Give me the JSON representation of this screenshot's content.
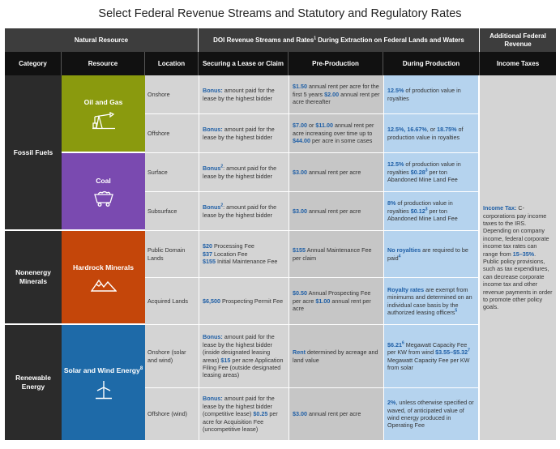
{
  "title": "Select Federal Revenue Streams and Statutory and Regulatory Rates",
  "header_top": {
    "natural_resource": "Natural Resource",
    "doi_streams_pre": "DOI Revenue Streams and Rates",
    "doi_streams_sup": "1",
    "doi_streams_post": " During Extraction on Federal Lands and Waters",
    "additional": "Additional Federal Revenue"
  },
  "header_cols": {
    "category": "Category",
    "resource": "Resource",
    "location": "Location",
    "securing": "Securing a Lease or Claim",
    "preproduction": "Pre-Production",
    "during": "During Production",
    "income_taxes": "Income Taxes"
  },
  "categories": {
    "fossil": "Fossil Fuels",
    "nonenergy": "Nonenergy Minerals",
    "renewable": "Renewable Energy"
  },
  "resources": {
    "oil_gas": "Oil and Gas",
    "coal": "Coal",
    "hardrock": "Hardrock Minerals",
    "solar_wind": "Solar and Wind Energy",
    "solar_wind_sup": "8"
  },
  "colors": {
    "oil_gas": "#8a9a0e",
    "coal": "#7a4ab0",
    "hardrock": "#c4460a",
    "solar_wind": "#1e6aa8",
    "header_dark": "#111111",
    "header_top": "#3d3d3d",
    "accent_text": "#1f5fa6"
  },
  "rows": {
    "onshore_og": {
      "location": "Onshore",
      "sec_b": "Bonus:",
      "sec_t": " amount paid for the lease by the highest bidder",
      "pre_b1": "$1.50",
      "pre_t1": " annual rent per acre for the first 5 years ",
      "pre_b2": "$2.00",
      "pre_t2": " annual rent per acre thereafter",
      "dur_b": "12.5%",
      "dur_t": " of production value in royalties"
    },
    "offshore_og": {
      "location": "Offshore",
      "sec_b": "Bonus:",
      "sec_t": " amount paid for the lease by the highest bidder",
      "pre_b1": "$7.00",
      "pre_t1": " or ",
      "pre_b2": "$11.00",
      "pre_t2": " annual rent per acre increasing over time up to ",
      "pre_b3": "$44.00",
      "pre_t3": " per acre in some cases",
      "dur_b1": "12.5%, 16.67%",
      "dur_t1": ", or ",
      "dur_b2": "18.75%",
      "dur_t2": " of production value in royalties"
    },
    "surface": {
      "location": "Surface",
      "sec_b": "Bonus",
      "sec_sup": "2",
      "sec_t": ": amount paid for the lease by the highest bidder",
      "pre_b": "$3.00",
      "pre_t": " annual rent per acre",
      "dur_b1": "12.5%",
      "dur_t1": " of production value in royalties ",
      "dur_b2": "$0.28",
      "dur_sup": "3",
      "dur_t2": " per ton Abandoned Mine Land Fee"
    },
    "subsurface": {
      "location": "Subsurface",
      "sec_b": "Bonus",
      "sec_sup": "2",
      "sec_t": ": amount paid for the lease by the highest bidder",
      "pre_b": "$3.00",
      "pre_t": " annual rent per acre",
      "dur_b1": "8%",
      "dur_t1": " of production value in royalties ",
      "dur_b2": "$0.12",
      "dur_sup": "3",
      "dur_t2": " per ton Abandoned Mine Land Fee"
    },
    "public_domain": {
      "location": "Public Domain Lands",
      "sec_b1": "$20",
      "sec_t1": " Processing Fee",
      "sec_b2": "$37",
      "sec_t2": " Location Fee",
      "sec_b3": "$155",
      "sec_t3": " Initial Maintenance Fee",
      "pre_b": "$155",
      "pre_t": " Annual Maintenance Fee per claim",
      "dur_b": "No royalties",
      "dur_t": " are required to be paid",
      "dur_sup": "4"
    },
    "acquired": {
      "location": "Acquired Lands",
      "sec_b": "$6,500",
      "sec_t": " Prospecting Permit Fee",
      "pre_b1": "$0.50",
      "pre_t1": " Annual Prospecting Fee per acre ",
      "pre_b2": "$1.00",
      "pre_t2": " annual rent per acre",
      "dur_b": "Royalty rates",
      "dur_t": " are exempt from minimums and determined on an individual case basis by the authorized leasing officers",
      "dur_sup": "5"
    },
    "onshore_sw": {
      "location": "Onshore (solar and wind)",
      "sec_b1": "Bonus:",
      "sec_t1": " amount paid for the lease by the highest bidder (inside designated leasing areas) ",
      "sec_b2": "$15",
      "sec_t2": " per acre Application Filing Fee (outside designated leasing areas)",
      "pre_b": "Rent",
      "pre_t": " determined by acreage and land value",
      "dur_b1": "$6.21",
      "dur_sup1": "6",
      "dur_t1": " Megawatt Capacity Fee per KW from wind ",
      "dur_b2": "$3.55–$5.32",
      "dur_sup2": "7",
      "dur_t2": " Megawatt Capacity Fee per KW from solar"
    },
    "offshore_w": {
      "location": "Offshore (wind)",
      "sec_b1": "Bonus:",
      "sec_t1": " amount paid for the lease by the highest bidder (competitive lease) ",
      "sec_b2": "$0.25",
      "sec_t2": " per acre for Acquisition Fee (uncompetitive lease)",
      "pre_b": "$3.00",
      "pre_t": " annual rent per acre",
      "dur_b": "2%",
      "dur_t": ", unless otherwise specified or waved, of anticipated value of wind energy produced in Operating Fee"
    }
  },
  "income_tax": {
    "label": "Income Tax:",
    "t1": " C-corporations pay income taxes to the IRS. Depending on company income, federal corporate income tax rates can range from ",
    "range": "15–35%",
    "t2": ". Public policy provisions, such as tax expenditures, can decrease corporate income tax and other revenue payments in order to promote other policy goals."
  }
}
